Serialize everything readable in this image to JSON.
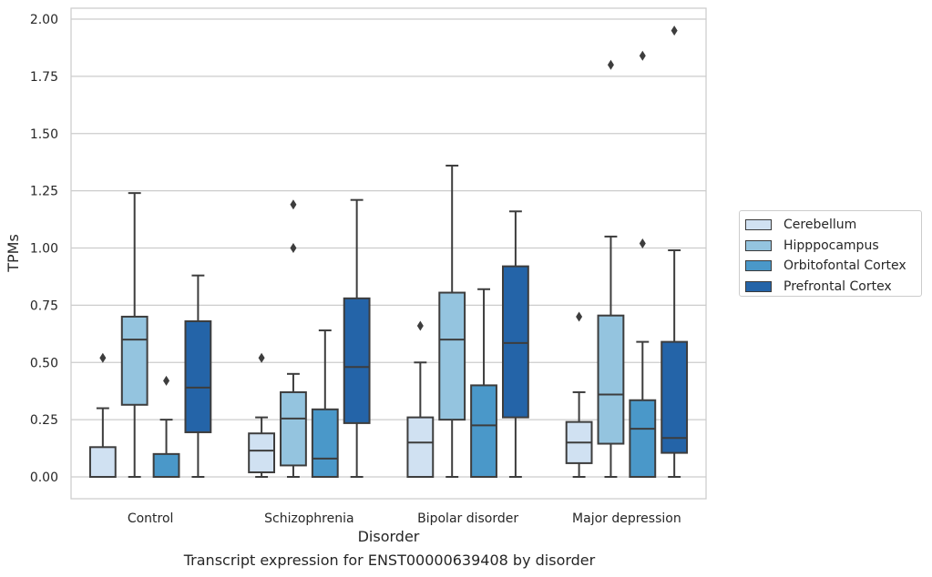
{
  "caption": "Transcript expression for ENST00000639408 by disorder",
  "chart_data": {
    "type": "box",
    "title": "",
    "xlabel": "Disorder",
    "ylabel": "TPMs",
    "ylim": [
      -0.095,
      2.05
    ],
    "yticks": [
      0.0,
      0.25,
      0.5,
      0.75,
      1.0,
      1.25,
      1.5,
      1.75,
      2.0
    ],
    "ytick_labels": [
      "0.00",
      "0.25",
      "0.50",
      "0.75",
      "1.00",
      "1.25",
      "1.50",
      "1.75",
      "2.00"
    ],
    "grid": true,
    "legend_position": "right",
    "categories": [
      "Control",
      "Schizophrenia",
      "Bipolar disorder",
      "Major depression"
    ],
    "series": [
      {
        "name": "Cerebellum",
        "color": "#d0e1f2",
        "boxes": [
          {
            "min": 0.0,
            "q1": 0.0,
            "median": 0.0,
            "q3": 0.13,
            "max": 0.3,
            "outliers": [
              0.52
            ]
          },
          {
            "min": 0.0,
            "q1": 0.02,
            "median": 0.115,
            "q3": 0.19,
            "max": 0.26,
            "outliers": [
              0.52
            ]
          },
          {
            "min": 0.0,
            "q1": 0.0,
            "median": 0.15,
            "q3": 0.26,
            "max": 0.5,
            "outliers": [
              0.66
            ]
          },
          {
            "min": 0.0,
            "q1": 0.06,
            "median": 0.15,
            "q3": 0.24,
            "max": 0.37,
            "outliers": [
              0.7
            ]
          }
        ]
      },
      {
        "name": "Hipppocampus",
        "color": "#94c4df",
        "boxes": [
          {
            "min": 0.0,
            "q1": 0.315,
            "median": 0.6,
            "q3": 0.7,
            "max": 1.24,
            "outliers": []
          },
          {
            "min": 0.0,
            "q1": 0.05,
            "median": 0.255,
            "q3": 0.37,
            "max": 0.45,
            "outliers": [
              1.0,
              1.19
            ]
          },
          {
            "min": 0.0,
            "q1": 0.25,
            "median": 0.6,
            "q3": 0.805,
            "max": 1.36,
            "outliers": []
          },
          {
            "min": 0.0,
            "q1": 0.145,
            "median": 0.36,
            "q3": 0.705,
            "max": 1.05,
            "outliers": [
              1.8
            ]
          }
        ]
      },
      {
        "name": "Orbitofontal Cortex",
        "color": "#4a98c9",
        "boxes": [
          {
            "min": 0.0,
            "q1": 0.0,
            "median": 0.0,
            "q3": 0.1,
            "max": 0.25,
            "outliers": [
              0.42
            ]
          },
          {
            "min": 0.0,
            "q1": 0.0,
            "median": 0.08,
            "q3": 0.295,
            "max": 0.64,
            "outliers": []
          },
          {
            "min": 0.0,
            "q1": 0.0,
            "median": 0.225,
            "q3": 0.4,
            "max": 0.82,
            "outliers": []
          },
          {
            "min": 0.0,
            "q1": 0.0,
            "median": 0.21,
            "q3": 0.335,
            "max": 0.59,
            "outliers": [
              1.02,
              1.84
            ]
          }
        ]
      },
      {
        "name": "Prefrontal Cortex",
        "color": "#2464a8",
        "boxes": [
          {
            "min": 0.0,
            "q1": 0.195,
            "median": 0.39,
            "q3": 0.68,
            "max": 0.88,
            "outliers": []
          },
          {
            "min": 0.0,
            "q1": 0.235,
            "median": 0.48,
            "q3": 0.78,
            "max": 1.21,
            "outliers": []
          },
          {
            "min": 0.0,
            "q1": 0.26,
            "median": 0.585,
            "q3": 0.92,
            "max": 1.16,
            "outliers": []
          },
          {
            "min": 0.0,
            "q1": 0.105,
            "median": 0.17,
            "q3": 0.59,
            "max": 0.99,
            "outliers": [
              1.95
            ]
          }
        ]
      }
    ]
  }
}
